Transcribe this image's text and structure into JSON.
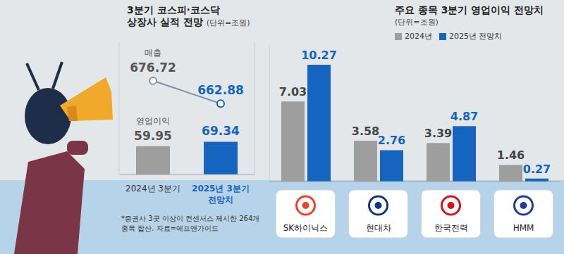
{
  "chart_data": [
    {
      "type": "bar",
      "title": "3분기 코스피·코스닥 상장사 실적 전망",
      "subtitle": "(단위=조원)",
      "categories": [
        "2024년 3분기",
        "2025년 3분기 전망치"
      ],
      "series": [
        {
          "name": "매출",
          "type": "line",
          "axis": "y2",
          "color": "#7f93ad",
          "colors": [
            "#8a96a3",
            "#1565c0"
          ],
          "marker": "circle",
          "values": [
            676.72,
            662.88
          ]
        },
        {
          "name": "영업이익",
          "type": "bar",
          "colors": [
            "#9e9e9e",
            "#1565c0"
          ],
          "values": [
            59.95,
            69.34
          ]
        }
      ],
      "ylim": [
        0,
        280
      ],
      "y2lim": [
        620,
        700
      ],
      "data_labels": true,
      "tick_labels": "x",
      "note": "*증권사 3곳 이상이 컨센서스 제시한 264개 종목 합산. 자료=에프앤가이드"
    },
    {
      "type": "bar",
      "title": "주요 종목 3분기 영업이익 전망치",
      "subtitle": "(단위=조원)",
      "categories": [
        "SK하이닉스",
        "현대차",
        "한국전력",
        "HMM"
      ],
      "series": [
        {
          "name": "2024년",
          "color": "#9e9e9e",
          "values": [
            7.03,
            3.58,
            3.39,
            1.46
          ]
        },
        {
          "name": "2025년 전망치",
          "color": "#1565c0",
          "values": [
            10.27,
            2.76,
            4.87,
            0.27
          ]
        }
      ],
      "ylim": [
        0,
        12
      ],
      "data_labels": true,
      "tick_labels": "x",
      "legend": "top"
    }
  ]
}
